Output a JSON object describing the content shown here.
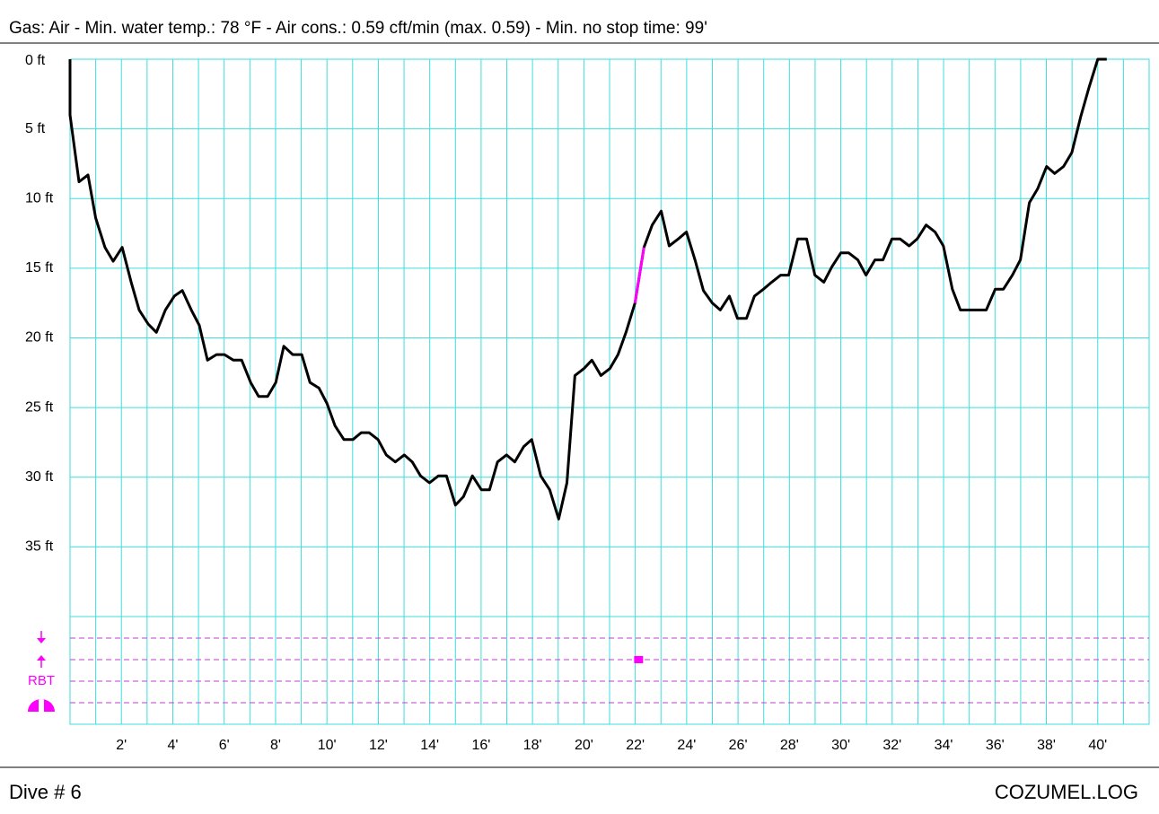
{
  "header": "Gas: Air  -  Min. water temp.: 78 °F  -  Air cons.: 0.59 cft/min (max. 0.59)  -  Min. no stop time: 99'",
  "footer": {
    "left": "Dive # 6",
    "right": "COZUMEL.LOG"
  },
  "chart_data": {
    "type": "line",
    "xlim": [
      0,
      42
    ],
    "ylim": [
      0,
      40
    ],
    "y_inverted": true,
    "grid": true,
    "grid_color": "#3ddede",
    "yticks": [
      {
        "value": 0,
        "label": "0 ft"
      },
      {
        "value": 5,
        "label": "5 ft"
      },
      {
        "value": 10,
        "label": "10 ft"
      },
      {
        "value": 15,
        "label": "15 ft"
      },
      {
        "value": 20,
        "label": "20 ft"
      },
      {
        "value": 25,
        "label": "25 ft"
      },
      {
        "value": 30,
        "label": "30 ft"
      },
      {
        "value": 35,
        "label": "35 ft"
      }
    ],
    "xticks": [
      {
        "value": 2,
        "label": "2'"
      },
      {
        "value": 4,
        "label": "4'"
      },
      {
        "value": 6,
        "label": "6'"
      },
      {
        "value": 8,
        "label": "8'"
      },
      {
        "value": 10,
        "label": "10'"
      },
      {
        "value": 12,
        "label": "12'"
      },
      {
        "value": 14,
        "label": "14'"
      },
      {
        "value": 16,
        "label": "16'"
      },
      {
        "value": 18,
        "label": "18'"
      },
      {
        "value": 20,
        "label": "20'"
      },
      {
        "value": 22,
        "label": "22'"
      },
      {
        "value": 24,
        "label": "24'"
      },
      {
        "value": 26,
        "label": "26'"
      },
      {
        "value": 28,
        "label": "28'"
      },
      {
        "value": 30,
        "label": "30'"
      },
      {
        "value": 32,
        "label": "32'"
      },
      {
        "value": 34,
        "label": "34'"
      },
      {
        "value": 36,
        "label": "36'"
      },
      {
        "value": 38,
        "label": "38'"
      },
      {
        "value": 40,
        "label": "40'"
      }
    ],
    "xminor": [
      1,
      3,
      5,
      7,
      9,
      11,
      13,
      15,
      17,
      19,
      21,
      23,
      25,
      27,
      29,
      31,
      33,
      35,
      37,
      39,
      41
    ],
    "series": [
      {
        "color": "#000000",
        "x": [
          0,
          0,
          0.35,
          0.7,
          1.0,
          1.36,
          1.68,
          2.03,
          2.38,
          2.69,
          3.04,
          3.36,
          3.71,
          4.06,
          4.37,
          4.72,
          5.03,
          5.35,
          5.7,
          6.01,
          6.36,
          6.68,
          7.03,
          7.34,
          7.69,
          8.01,
          8.32,
          8.67,
          9.02,
          9.34,
          9.69,
          10.0,
          10.31,
          10.66,
          11.01,
          11.33,
          11.64,
          11.99,
          12.31,
          12.66,
          13.01,
          13.32,
          13.64,
          13.99,
          14.34,
          14.65,
          15.0,
          15.31,
          15.66,
          16.01,
          16.33,
          16.64,
          16.99,
          17.31,
          17.66,
          17.97,
          18.32,
          18.67,
          19.02,
          19.34,
          19.65,
          20.0,
          20.31,
          20.66,
          21.01,
          21.33,
          21.64,
          21.99,
          22.34,
          22.66,
          23.01,
          23.32,
          23.67,
          23.99,
          24.34,
          24.65,
          25.0,
          25.31,
          25.66,
          25.98,
          26.33,
          26.64,
          26.99,
          27.31,
          27.66,
          27.97,
          28.32,
          28.67,
          28.99,
          29.34,
          29.65,
          30.0,
          30.31,
          30.66,
          30.98,
          31.33,
          31.64,
          31.99,
          32.31,
          32.66,
          32.97,
          33.32,
          33.67,
          33.99,
          34.34,
          34.65,
          35.0,
          35.31,
          35.66,
          36.01,
          36.33,
          36.68,
          36.99,
          37.34,
          37.66,
          38.01,
          38.32,
          38.67,
          38.99,
          39.34,
          39.65,
          40.0,
          40.35
        ],
        "values": [
          0,
          4.0,
          8.8,
          8.3,
          11.4,
          13.5,
          14.5,
          13.5,
          16.0,
          18.0,
          19.0,
          19.6,
          18.0,
          17.0,
          16.6,
          18.0,
          19.1,
          21.6,
          21.2,
          21.2,
          21.6,
          21.6,
          23.2,
          24.2,
          24.2,
          23.2,
          20.6,
          21.2,
          21.2,
          23.2,
          23.6,
          24.7,
          26.3,
          27.3,
          27.3,
          26.8,
          26.8,
          27.3,
          28.4,
          28.9,
          28.4,
          28.9,
          29.9,
          30.4,
          29.9,
          29.9,
          32.0,
          31.4,
          29.9,
          30.9,
          30.9,
          28.9,
          28.4,
          28.9,
          27.8,
          27.3,
          29.9,
          30.9,
          33.0,
          30.4,
          22.7,
          22.2,
          21.6,
          22.7,
          22.2,
          21.2,
          19.6,
          17.5,
          13.5,
          11.9,
          10.9,
          13.4,
          12.9,
          12.4,
          14.5,
          16.6,
          17.5,
          18.0,
          17.0,
          18.6,
          18.6,
          17.0,
          16.5,
          16.0,
          15.5,
          15.5,
          12.9,
          12.9,
          15.5,
          16.0,
          14.9,
          13.9,
          13.9,
          14.4,
          15.5,
          14.4,
          14.4,
          12.9,
          12.9,
          13.4,
          12.9,
          11.9,
          12.4,
          13.4,
          16.5,
          18.0,
          18.0,
          18.0,
          18.0,
          16.5,
          16.5,
          15.5,
          14.4,
          10.3,
          9.3,
          7.7,
          8.2,
          7.7,
          6.7,
          4.1,
          2.1,
          0,
          0
        ]
      },
      {
        "color": "#ff00ff",
        "x": [
          21.99,
          22.34
        ],
        "values": [
          17.5,
          13.5
        ]
      }
    ],
    "alarm_color": "#ff00ff",
    "alarms": [
      22.13
    ],
    "rbt_label": "RBT"
  }
}
